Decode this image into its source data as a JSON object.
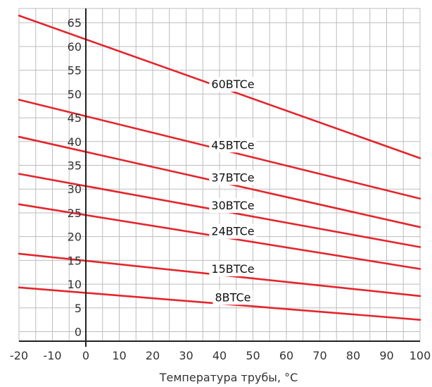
{
  "colors": {
    "series": "#e3262d",
    "grid": "#bdbdbd",
    "axis": "#222222",
    "text": "#333333"
  },
  "chart_data": {
    "type": "line",
    "title": "",
    "xlabel": "Температура трубы, °C",
    "ylabel": "",
    "xlim": [
      -20,
      100
    ],
    "ylim": [
      -2,
      68
    ],
    "grid": true,
    "legend": "inline labels on lines",
    "x_ticks": [
      "-20",
      "-10",
      "0",
      "10",
      "20",
      "30",
      "40",
      "50",
      "60",
      "70",
      "80",
      "90",
      "100"
    ],
    "y_ticks": [
      "0",
      "5",
      "10",
      "15",
      "20",
      "25",
      "30",
      "35",
      "40",
      "45",
      "50",
      "55",
      "60",
      "65"
    ],
    "series": [
      {
        "name": "60BTCe",
        "x": [
          -20,
          100
        ],
        "y": [
          66.5,
          36.5
        ],
        "label_x": 44
      },
      {
        "name": "45BTCe",
        "x": [
          -20,
          100
        ],
        "y": [
          48.8,
          28.0
        ],
        "label_x": 44
      },
      {
        "name": "37BTCe",
        "x": [
          -20,
          100
        ],
        "y": [
          41.0,
          22.0
        ],
        "label_x": 44
      },
      {
        "name": "30BTCe",
        "x": [
          -20,
          100
        ],
        "y": [
          33.2,
          17.8
        ],
        "label_x": 44
      },
      {
        "name": "24BTCe",
        "x": [
          -20,
          100
        ],
        "y": [
          26.8,
          13.2
        ],
        "label_x": 44
      },
      {
        "name": "15BTCe",
        "x": [
          -20,
          100
        ],
        "y": [
          16.4,
          7.5
        ],
        "label_x": 44
      },
      {
        "name": "8BTCe",
        "x": [
          -20,
          100
        ],
        "y": [
          9.3,
          2.5
        ],
        "label_x": 44
      }
    ]
  }
}
